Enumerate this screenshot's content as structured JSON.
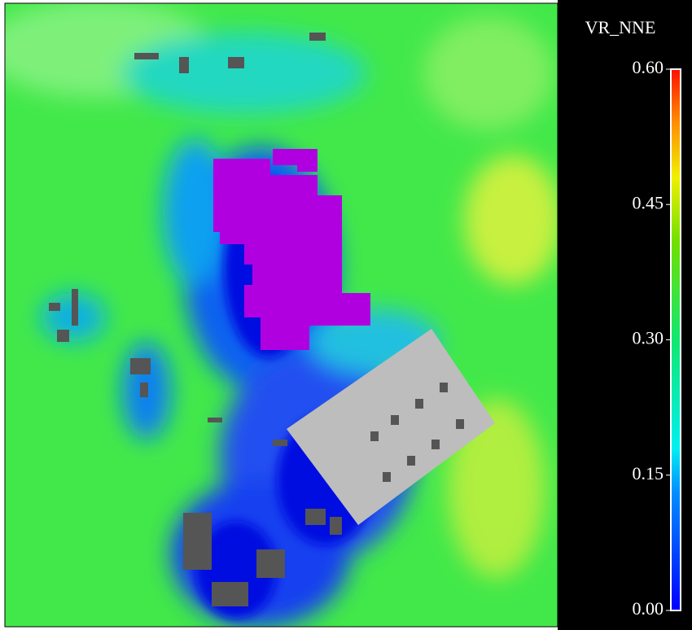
{
  "legend": {
    "title": "VR_NNE",
    "range": [
      0,
      0.6
    ],
    "ticks": [
      {
        "value": 0,
        "label": "0.00"
      },
      {
        "value": 0.15,
        "label": "0.15"
      },
      {
        "value": 0.3,
        "label": "0.30"
      },
      {
        "value": 0.45,
        "label": "0.45"
      },
      {
        "value": 0.6,
        "label": "0.60"
      }
    ]
  }
}
